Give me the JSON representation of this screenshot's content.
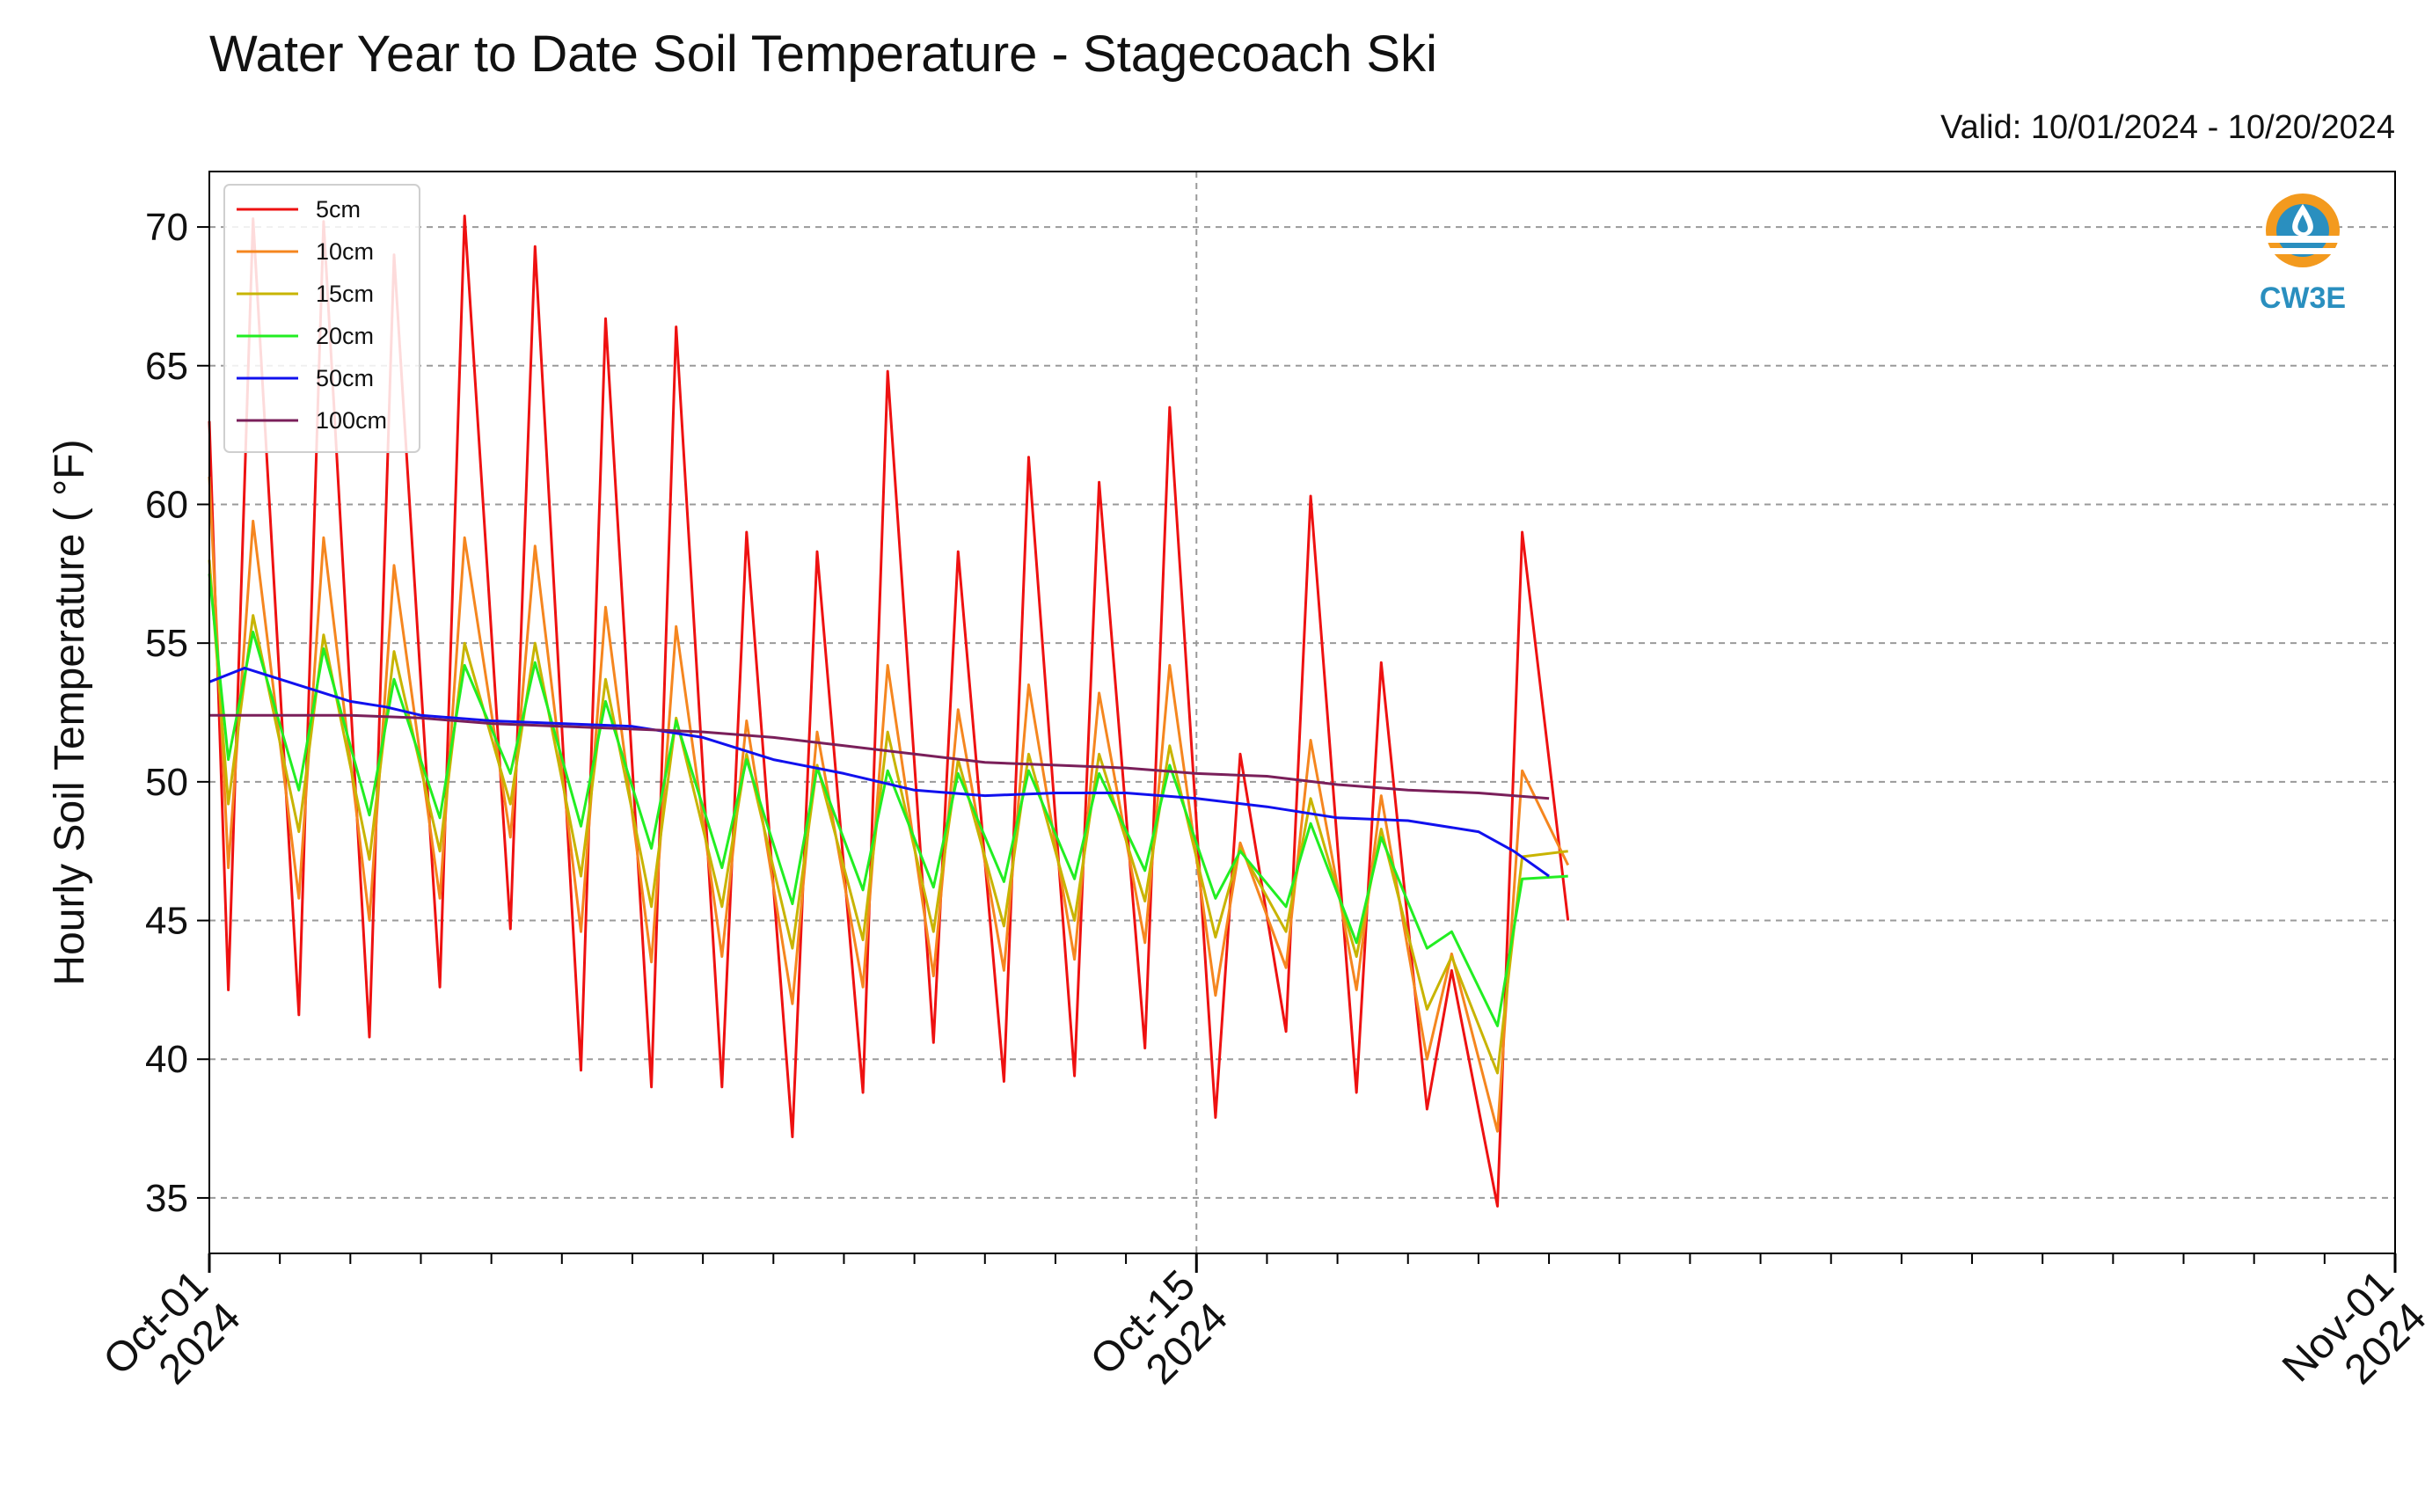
{
  "chart_data": {
    "type": "line",
    "title": "Water Year to Date Soil Temperature - Stagecoach Ski",
    "subtitle": "Valid: 10/01/2024 - 10/20/2024",
    "ylabel": "Hourly Soil Temperature ( °F)",
    "xlabel": "",
    "ylim": [
      33,
      72
    ],
    "yticks": [
      35,
      40,
      45,
      50,
      55,
      60,
      65,
      70
    ],
    "xlim": [
      "2024-10-01",
      "2024-11-01"
    ],
    "xticks": [
      {
        "date": "2024-10-01",
        "line1": "Oct-01",
        "line2": "2024"
      },
      {
        "date": "2024-10-15",
        "line1": "Oct-15",
        "line2": "2024"
      },
      {
        "date": "2024-11-01",
        "line1": "Nov-01",
        "line2": "2024"
      }
    ],
    "grid": true,
    "legend_position": "top-left",
    "logo_text": "CW3E",
    "daily_minor_ticks": true,
    "series": [
      {
        "name": "5cm",
        "color": "#ee1111",
        "day_start": 63.0,
        "daily_min": [
          42.5,
          41.6,
          40.8,
          42.6,
          44.7,
          39.6,
          39.0,
          39.0,
          37.2,
          38.8,
          40.6,
          39.2,
          39.4,
          40.4,
          37.9,
          41.0,
          38.8,
          38.2,
          34.7,
          45.0
        ],
        "daily_max": [
          70.3,
          70.2,
          69.0,
          70.4,
          69.3,
          66.7,
          66.4,
          59.0,
          58.3,
          64.8,
          58.3,
          61.7,
          60.8,
          63.5,
          51.0,
          60.3,
          54.3,
          43.2,
          59.0
        ]
      },
      {
        "name": "10cm",
        "color": "#f5861f",
        "day_start": 61.0,
        "daily_min": [
          46.9,
          45.8,
          45.0,
          45.8,
          48.0,
          44.6,
          43.5,
          43.7,
          42.0,
          42.6,
          43.0,
          43.2,
          43.6,
          44.2,
          42.3,
          43.3,
          42.5,
          40.0,
          37.4,
          47.0
        ],
        "daily_max": [
          59.4,
          58.8,
          57.8,
          58.8,
          58.5,
          56.3,
          55.6,
          52.2,
          51.8,
          54.2,
          52.6,
          53.5,
          53.2,
          54.2,
          47.8,
          51.5,
          49.5,
          43.8,
          50.4
        ]
      },
      {
        "name": "15cm",
        "color": "#c8b400",
        "day_start": 58.0,
        "daily_min": [
          49.2,
          48.2,
          47.2,
          47.5,
          49.2,
          46.6,
          45.5,
          45.5,
          44.0,
          44.3,
          44.6,
          44.8,
          45.0,
          45.7,
          44.4,
          44.6,
          43.7,
          41.8,
          39.5,
          47.5
        ],
        "daily_max": [
          56.0,
          55.3,
          54.7,
          55.0,
          55.0,
          53.7,
          52.3,
          51.0,
          50.6,
          51.8,
          50.8,
          51.0,
          51.0,
          51.3,
          47.6,
          49.4,
          48.3,
          43.7,
          47.3
        ]
      },
      {
        "name": "20cm",
        "color": "#22ee22",
        "day_start": 57.5,
        "daily_min": [
          50.8,
          49.7,
          48.8,
          48.7,
          50.3,
          48.4,
          47.6,
          46.9,
          45.6,
          46.1,
          46.2,
          46.4,
          46.5,
          46.8,
          45.8,
          45.5,
          44.2,
          44.0,
          41.2,
          46.6
        ],
        "daily_max": [
          55.4,
          54.8,
          53.7,
          54.2,
          54.3,
          52.9,
          52.2,
          50.8,
          50.5,
          50.4,
          50.3,
          50.4,
          50.3,
          50.6,
          47.5,
          48.5,
          48.0,
          44.6,
          46.5
        ]
      },
      {
        "name": "50cm",
        "color": "#1111ee",
        "x_days": [
          0,
          0.5,
          1,
          1.5,
          2,
          2.5,
          3,
          4,
          5,
          6,
          7,
          8,
          9,
          10,
          11,
          12,
          13,
          14,
          15,
          16,
          17,
          18,
          18.5,
          19
        ],
        "values": [
          53.6,
          54.1,
          53.7,
          53.3,
          52.9,
          52.7,
          52.4,
          52.2,
          52.1,
          52.0,
          51.6,
          50.8,
          50.3,
          49.7,
          49.5,
          49.6,
          49.6,
          49.4,
          49.1,
          48.7,
          48.6,
          48.2,
          47.5,
          46.6
        ]
      },
      {
        "name": "100cm",
        "color": "#7a1f5a",
        "x_days": [
          0,
          1,
          2,
          3,
          4,
          5,
          6,
          7,
          8,
          9,
          10,
          11,
          12,
          13,
          14,
          15,
          16,
          17,
          18,
          19
        ],
        "values": [
          52.4,
          52.4,
          52.4,
          52.3,
          52.1,
          52.0,
          51.9,
          51.8,
          51.6,
          51.3,
          51.0,
          50.7,
          50.6,
          50.5,
          50.3,
          50.2,
          49.9,
          49.7,
          49.6,
          49.4
        ]
      }
    ]
  }
}
